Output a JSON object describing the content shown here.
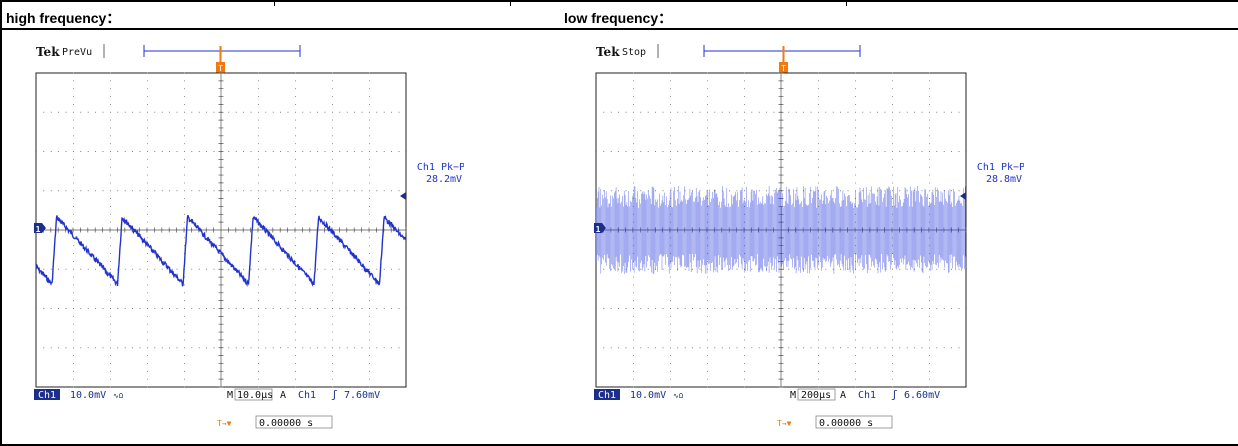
{
  "headers": {
    "left": "high frequency：",
    "right": "low frequency："
  },
  "scopes": [
    {
      "brand": "Tek",
      "state": "PreVu",
      "trigger_marker": "T",
      "channel_marker": "1",
      "measurement_label": "Ch1 Pk−Pk",
      "measurement_value": "28.2mV",
      "channel_badge": "Ch1",
      "volts_per_div": "10.0mV",
      "bandwidth_symbol": "∿Ω",
      "timebase_prefix": "M",
      "timebase": "10.0µs",
      "trigger_mode": "A",
      "trigger_channel": "Ch1",
      "trigger_slope": "ʃ",
      "trigger_level": "7.60mV",
      "trigger_offset_symbol": "T→▼",
      "trigger_offset": "0.00000 s",
      "waveform": "sawtooth",
      "colors": {
        "trace": "#2233cc",
        "accent": "#f07a10",
        "badge": "#1a2e8a"
      }
    },
    {
      "brand": "Tek",
      "state": "Stop",
      "trigger_marker": "T",
      "channel_marker": "1",
      "measurement_label": "Ch1 Pk−Pk",
      "measurement_value": "28.8mV",
      "channel_badge": "Ch1",
      "volts_per_div": "10.0mV",
      "bandwidth_symbol": "∿Ω",
      "timebase_prefix": "M",
      "timebase": "200µs",
      "trigger_mode": "A",
      "trigger_channel": "Ch1",
      "trigger_slope": "ʃ",
      "trigger_level": "6.60mV",
      "trigger_offset_symbol": "T→▼",
      "trigger_offset": "0.00000 s",
      "waveform": "dense-noise",
      "colors": {
        "trace": "#3344dd",
        "accent": "#f07a10",
        "badge": "#1a2e8a"
      }
    }
  ]
}
